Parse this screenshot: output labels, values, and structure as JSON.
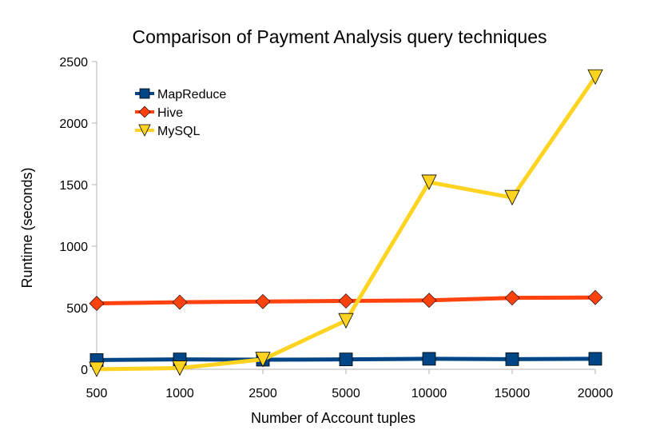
{
  "chart_data": {
    "type": "line",
    "title": "Comparison of Payment Analysis query techniques",
    "xlabel": "Number of Account tuples",
    "ylabel": "Runtime (seconds)",
    "categories": [
      "500",
      "1000",
      "2500",
      "5000",
      "10000",
      "15000",
      "20000"
    ],
    "ylim": [
      0,
      2500
    ],
    "yticks": [
      0,
      500,
      1000,
      1500,
      2000,
      2500
    ],
    "grid": false,
    "legend_position": "top-left",
    "series": [
      {
        "name": "MapReduce",
        "color": "#004586",
        "marker": "square",
        "values": [
          75,
          80,
          78,
          80,
          85,
          82,
          85
        ]
      },
      {
        "name": "Hive",
        "color": "#ff420e",
        "marker": "diamond",
        "values": [
          535,
          545,
          550,
          555,
          560,
          580,
          583
        ]
      },
      {
        "name": "MySQL",
        "color": "#ffd320",
        "marker": "triangle-down",
        "values": [
          0,
          10,
          80,
          395,
          1520,
          1395,
          2375
        ]
      }
    ]
  }
}
